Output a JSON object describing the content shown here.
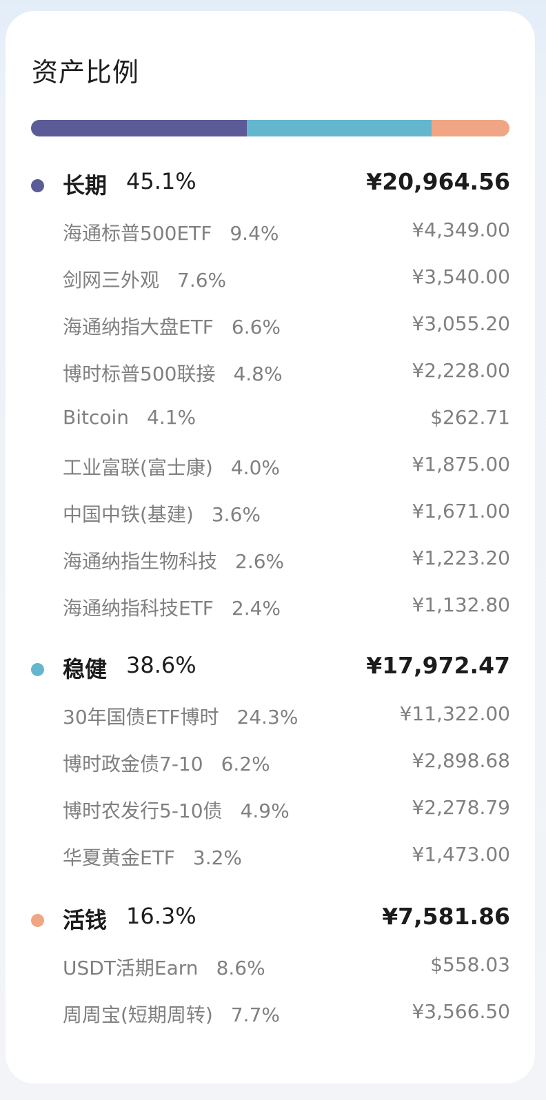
{
  "card": {
    "title": "资产比例"
  },
  "progress": [
    {
      "name": "长期",
      "fraction": 0.451,
      "color": "#5a5b97"
    },
    {
      "name": "稳健",
      "fraction": 0.386,
      "color": "#63b6cd"
    },
    {
      "name": "活钱",
      "fraction": 0.163,
      "color": "#f0a584"
    }
  ],
  "groups": [
    {
      "name": "长期",
      "pct": "45.1%",
      "amount": "¥20,964.56",
      "color": "#5a5b97",
      "items": [
        {
          "name": "海通标普500ETF",
          "pct": "9.4%",
          "amount": "¥4,349.00"
        },
        {
          "name": "剑网三外观",
          "pct": "7.6%",
          "amount": "¥3,540.00"
        },
        {
          "name": "海通纳指大盘ETF",
          "pct": "6.6%",
          "amount": "¥3,055.20"
        },
        {
          "name": "博时标普500联接",
          "pct": "4.8%",
          "amount": "¥2,228.00"
        },
        {
          "name": "Bitcoin",
          "pct": "4.1%",
          "amount": "$262.71"
        },
        {
          "name": "工业富联(富士康)",
          "pct": "4.0%",
          "amount": "¥1,875.00"
        },
        {
          "name": "中国中铁(基建)",
          "pct": "3.6%",
          "amount": "¥1,671.00"
        },
        {
          "name": "海通纳指生物科技",
          "pct": "2.6%",
          "amount": "¥1,223.20"
        },
        {
          "name": "海通纳指科技ETF",
          "pct": "2.4%",
          "amount": "¥1,132.80"
        }
      ]
    },
    {
      "name": "稳健",
      "pct": "38.6%",
      "amount": "¥17,972.47",
      "color": "#63b6cd",
      "items": [
        {
          "name": "30年国债ETF博时",
          "pct": "24.3%",
          "amount": "¥11,322.00"
        },
        {
          "name": "博时政金债7-10",
          "pct": "6.2%",
          "amount": "¥2,898.68"
        },
        {
          "name": "博时农发行5-10债",
          "pct": "4.9%",
          "amount": "¥2,278.79"
        },
        {
          "name": "华夏黄金ETF",
          "pct": "3.2%",
          "amount": "¥1,473.00"
        }
      ]
    },
    {
      "name": "活钱",
      "pct": "16.3%",
      "amount": "¥7,581.86",
      "color": "#f0a584",
      "items": [
        {
          "name": "USDT活期Earn",
          "pct": "8.6%",
          "amount": "$558.03"
        },
        {
          "name": "周周宝(短期周转)",
          "pct": "7.7%",
          "amount": "¥3,566.50"
        }
      ]
    }
  ]
}
